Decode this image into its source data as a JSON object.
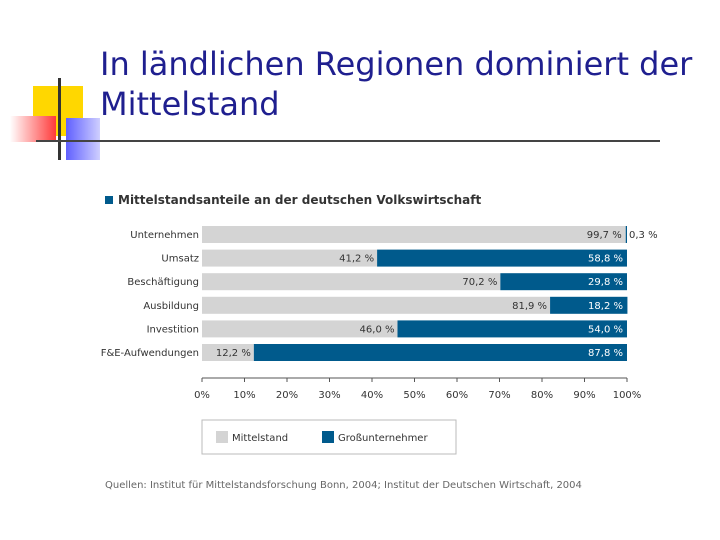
{
  "slide": {
    "title_line1": "In ländlichen Regionen dominiert der",
    "title_line2": "Mittelstand"
  },
  "colors": {
    "title": "#1f1f8f",
    "mittelstand": "#d4d4d4",
    "gross": "#005a8c",
    "text": "#333333"
  },
  "chart_data": {
    "type": "bar",
    "orientation": "horizontal-stacked-100",
    "title": "Mittelstandsanteile an der deutschen Volkswirtschaft",
    "categories": [
      "Unternehmen",
      "Umsatz",
      "Beschäftigung",
      "Ausbildung",
      "Investition",
      "F&E-Aufwendungen"
    ],
    "series": [
      {
        "name": "Mittelstand",
        "values": [
          99.7,
          41.2,
          70.2,
          81.9,
          46.0,
          12.2
        ],
        "labels": [
          "99,7 %",
          "41,2 %",
          "70,2 %",
          "81,9 %",
          "46,0 %",
          "12,2 %"
        ]
      },
      {
        "name": "Großunternehmer",
        "values": [
          0.3,
          58.8,
          29.8,
          18.2,
          54.0,
          87.8
        ],
        "labels": [
          "0,3 %",
          "58,8 %",
          "29,8 %",
          "18,2 %",
          "54,0 %",
          "87,8 %"
        ]
      }
    ],
    "xlim": [
      0,
      100
    ],
    "x_ticks": [
      "0%",
      "10%",
      "20%",
      "30%",
      "40%",
      "50%",
      "60%",
      "70%",
      "80%",
      "90%",
      "100%"
    ],
    "legend": [
      "Mittelstand",
      "Großunternehmer"
    ],
    "source": "Quellen: Institut für Mittelstandsforschung Bonn, 2004; Institut der Deutschen Wirtschaft, 2004"
  }
}
